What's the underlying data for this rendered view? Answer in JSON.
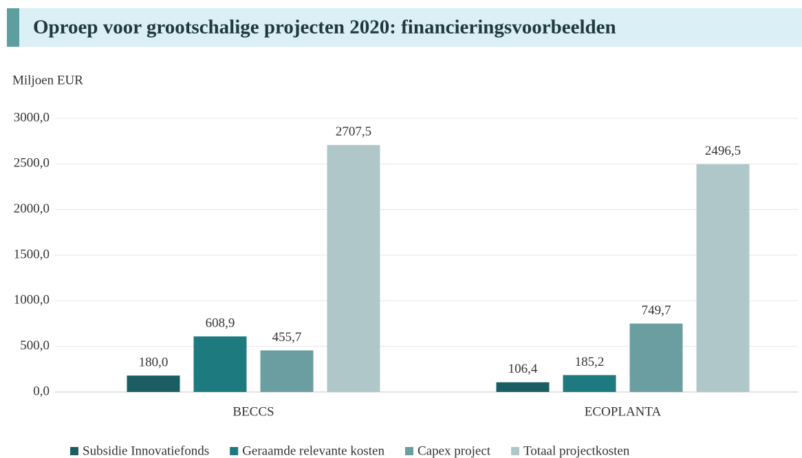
{
  "chart_data": {
    "type": "bar",
    "title": "Oproep voor grootschalige projecten 2020: financieringsvoorbeelden",
    "y_axis_label": "Miljoen EUR",
    "categories": [
      "BECCS",
      "ECOPLANTA"
    ],
    "series": [
      {
        "name": "Subsidie Innovatiefonds",
        "color": "#1a5e63",
        "values": [
          180.0,
          106.4
        ],
        "value_labels": [
          "180,0",
          "106,4"
        ]
      },
      {
        "name": "Geraamde relevante kosten",
        "color": "#1d7a7f",
        "values": [
          608.9,
          185.2
        ],
        "value_labels": [
          "608,9",
          "185,2"
        ]
      },
      {
        "name": "Capex project",
        "color": "#6b9ea0",
        "values": [
          455.7,
          749.7
        ],
        "value_labels": [
          "455,7",
          "749,7"
        ]
      },
      {
        "name": "Totaal projectkosten",
        "color": "#b0c7ca",
        "values": [
          2707.5,
          2496.5
        ],
        "value_labels": [
          "2707,5",
          "2496,5"
        ]
      }
    ],
    "ylim": [
      0,
      3000
    ],
    "yticks": [
      {
        "value": 0,
        "label": "0,0"
      },
      {
        "value": 500,
        "label": "500,0"
      },
      {
        "value": 1000,
        "label": "1000,0"
      },
      {
        "value": 1500,
        "label": "1500,0"
      },
      {
        "value": 2000,
        "label": "2000,0"
      },
      {
        "value": 2500,
        "label": "2500,0"
      },
      {
        "value": 3000,
        "label": "3000,0"
      }
    ],
    "grid": true,
    "legend": "bottom"
  }
}
